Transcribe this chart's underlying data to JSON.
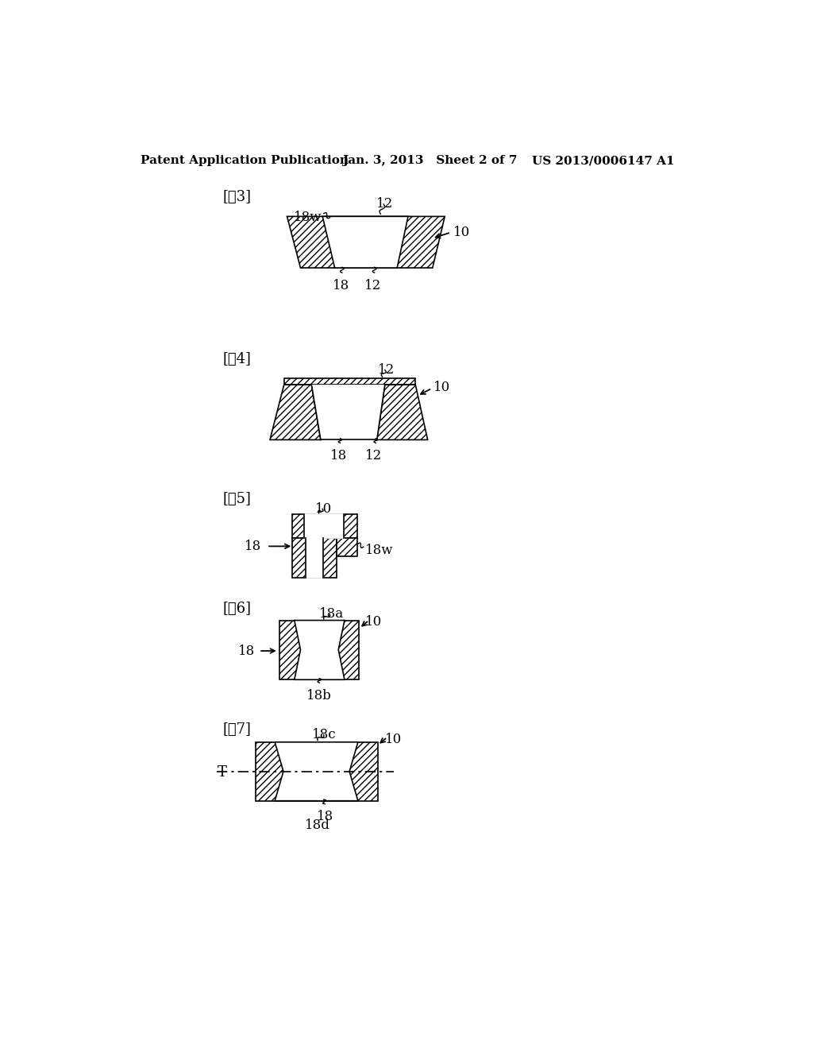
{
  "header_left": "Patent Application Publication",
  "header_mid": "Jan. 3, 2013   Sheet 2 of 7",
  "header_right": "US 2013/0006147 A1",
  "bg_color": "#ffffff",
  "fig3_label": "[図3]",
  "fig4_label": "[図4]",
  "fig5_label": "[図5]",
  "fig6_label": "[図6]",
  "fig7_label": "[図7]"
}
